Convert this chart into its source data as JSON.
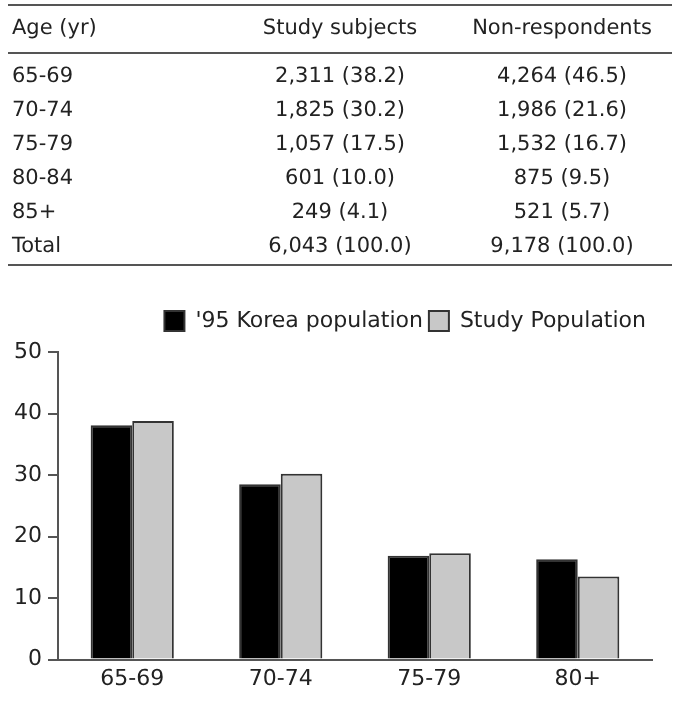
{
  "chart_data": [
    {
      "type": "other",
      "annotations": [
        "Age (yr)",
        "Study subjects",
        "Non-respondents",
        "65-69",
        "2,311 (38.2)",
        "4,264 (46.5)",
        "70-74",
        "1,825 (30.2)",
        "1,986 (21.6)",
        "75-79",
        "1,057 (17.5)",
        "1,532 (16.7)",
        "80-84",
        "601 (10.0)",
        "875 (9.5)",
        "85+",
        "249 (4.1)",
        "521 (5.7)",
        "Total",
        "6,043 (100.0)",
        "9,178 (100.0)"
      ]
    },
    {
      "type": "bar",
      "categories": [
        "65-69",
        "70-74",
        "75-79",
        "80+"
      ],
      "series": [
        {
          "name": "'95 Korea population",
          "color": "#000000",
          "values": [
            38.1,
            28.5,
            16.9,
            16.3
          ]
        },
        {
          "name": "Study Population",
          "color": "#c8c8c8",
          "values": [
            38.8,
            30.2,
            17.3,
            13.5
          ]
        }
      ],
      "ylim": [
        0,
        50
      ],
      "yticks": [
        0,
        10,
        20,
        30,
        40,
        50
      ],
      "grid": false,
      "legend": "top right"
    }
  ]
}
